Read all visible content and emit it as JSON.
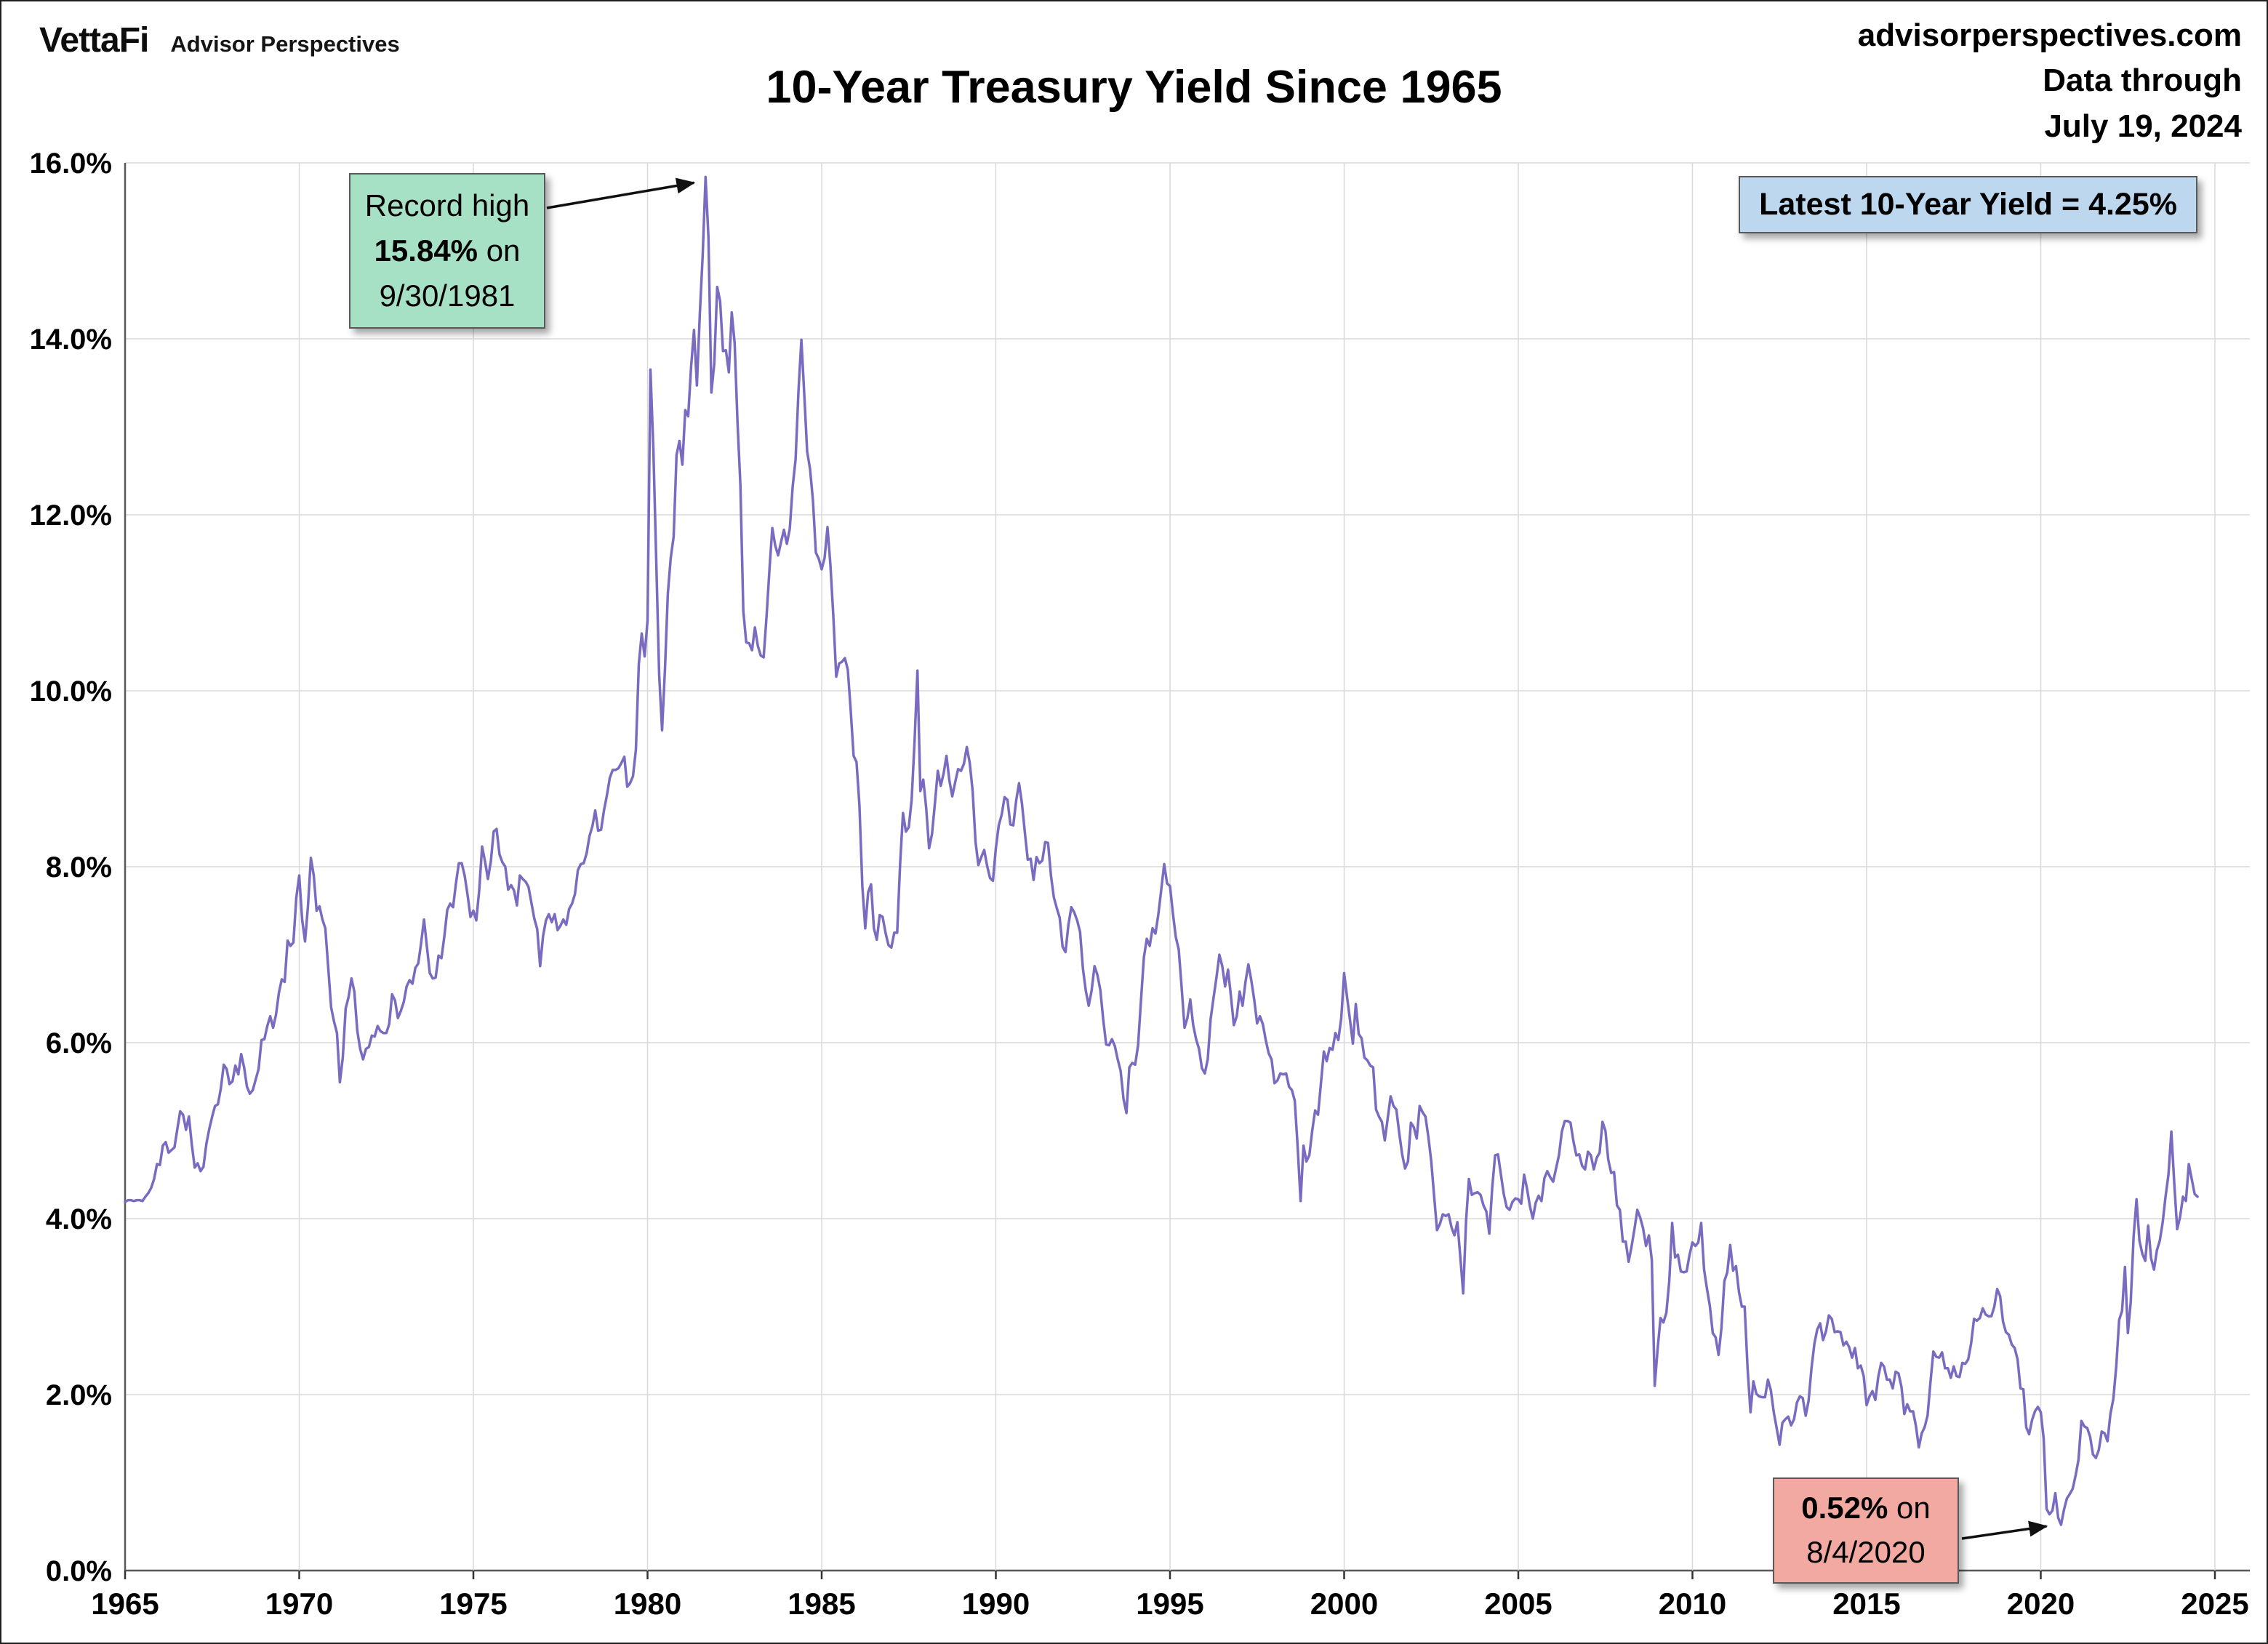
{
  "page": {
    "brand": {
      "logo_text": "VettaFi",
      "sub_brand": "Advisor Perspectives"
    },
    "header_right": {
      "line1": "advisorperspectives.com",
      "line2": "Data through",
      "line3": "July 19, 2024"
    },
    "title": "10-Year Treasury Yield Since 1965"
  },
  "annotations": {
    "record_high": {
      "line1": "Record high",
      "value": "15.84%",
      "suffix": " on",
      "date": "9/30/1981",
      "bg": "#a6e1c5",
      "anchor_year": 1981.667,
      "anchor_value": 15.84
    },
    "latest": {
      "text": "Latest 10-Year Yield = 4.25%",
      "bg": "#bdd7ee"
    },
    "low": {
      "value": "0.52%",
      "suffix": " on",
      "date": "8/4/2020",
      "bg": "#f1a9a2",
      "anchor_year": 2020.583,
      "anchor_value": 0.52
    }
  },
  "chart_data": {
    "type": "line",
    "title": "10-Year Treasury Yield Since 1965",
    "series_name": "10-Year Treasury Yield",
    "line_color": "#7a6bc1",
    "grid": true,
    "xlim": [
      1965,
      2025
    ],
    "ylim": [
      0,
      16
    ],
    "xticks": [
      1965,
      1970,
      1975,
      1980,
      1985,
      1990,
      1995,
      2000,
      2005,
      2010,
      2015,
      2020,
      2025
    ],
    "xtick_labels": [
      "1965",
      "1970",
      "1975",
      "1980",
      "1985",
      "1990",
      "1995",
      "2000",
      "2005",
      "2010",
      "2015",
      "2020",
      "2025"
    ],
    "yticks": [
      0,
      2,
      4,
      6,
      8,
      10,
      12,
      14,
      16
    ],
    "ytick_labels": [
      "0.0%",
      "2.0%",
      "4.0%",
      "6.0%",
      "8.0%",
      "10.0%",
      "12.0%",
      "14.0%",
      "16.0%"
    ],
    "x_start_year": 1965,
    "x_points_per_year": 12,
    "values": [
      4.19,
      4.21,
      4.21,
      4.2,
      4.21,
      4.21,
      4.2,
      4.25,
      4.29,
      4.35,
      4.45,
      4.62,
      4.61,
      4.83,
      4.87,
      4.75,
      4.78,
      4.81,
      5.02,
      5.22,
      5.18,
      5.01,
      5.16,
      4.84,
      4.58,
      4.63,
      4.54,
      4.59,
      4.85,
      5.02,
      5.16,
      5.28,
      5.3,
      5.48,
      5.75,
      5.7,
      5.53,
      5.56,
      5.74,
      5.64,
      5.87,
      5.72,
      5.5,
      5.42,
      5.46,
      5.58,
      5.7,
      6.03,
      6.04,
      6.19,
      6.3,
      6.17,
      6.32,
      6.57,
      6.72,
      6.69,
      7.16,
      7.1,
      7.14,
      7.65,
      7.9,
      7.4,
      7.15,
      7.55,
      8.1,
      7.9,
      7.5,
      7.55,
      7.4,
      7.3,
      6.85,
      6.4,
      6.24,
      6.11,
      5.55,
      5.83,
      6.39,
      6.52,
      6.73,
      6.58,
      6.14,
      5.93,
      5.81,
      5.93,
      5.95,
      6.08,
      6.07,
      6.19,
      6.13,
      6.11,
      6.11,
      6.21,
      6.55,
      6.48,
      6.28,
      6.36,
      6.46,
      6.64,
      6.71,
      6.67,
      6.85,
      6.9,
      7.13,
      7.4,
      7.09,
      6.79,
      6.73,
      6.74,
      6.99,
      6.96,
      7.21,
      7.51,
      7.58,
      7.54,
      7.81,
      8.04,
      8.04,
      7.9,
      7.68,
      7.43,
      7.5,
      7.39,
      7.73,
      8.23,
      8.06,
      7.86,
      8.06,
      8.4,
      8.43,
      8.14,
      8.05,
      8.0,
      7.74,
      7.79,
      7.73,
      7.56,
      7.9,
      7.86,
      7.83,
      7.77,
      7.59,
      7.41,
      7.29,
      6.87,
      7.21,
      7.39,
      7.46,
      7.37,
      7.46,
      7.28,
      7.33,
      7.4,
      7.34,
      7.52,
      7.58,
      7.69,
      7.96,
      8.03,
      8.04,
      8.15,
      8.35,
      8.46,
      8.64,
      8.41,
      8.42,
      8.64,
      8.81,
      9.01,
      9.1,
      9.1,
      9.12,
      9.18,
      9.25,
      8.91,
      8.95,
      9.03,
      9.33,
      10.3,
      10.65,
      10.39,
      10.8,
      13.65,
      12.75,
      11.47,
      10.18,
      9.55,
      10.25,
      11.1,
      11.51,
      11.75,
      12.68,
      12.84,
      12.57,
      13.19,
      13.12,
      13.68,
      14.1,
      13.47,
      14.28,
      14.94,
      15.84,
      15.15,
      13.39,
      13.72,
      14.59,
      14.43,
      13.86,
      13.87,
      13.62,
      14.3,
      13.95,
      13.06,
      12.34,
      10.91,
      10.55,
      10.54,
      10.46,
      10.72,
      10.51,
      10.4,
      10.38,
      10.85,
      11.38,
      11.85,
      11.65,
      11.54,
      11.69,
      11.83,
      11.67,
      11.84,
      12.32,
      12.63,
      13.41,
      13.99,
      13.36,
      12.72,
      12.52,
      12.16,
      11.57,
      11.5,
      11.38,
      11.51,
      11.86,
      11.43,
      10.85,
      10.16,
      10.31,
      10.33,
      10.37,
      10.24,
      9.78,
      9.26,
      9.19,
      8.7,
      7.78,
      7.3,
      7.71,
      7.8,
      7.3,
      7.17,
      7.45,
      7.43,
      7.25,
      7.11,
      7.08,
      7.25,
      7.25,
      8.02,
      8.61,
      8.4,
      8.45,
      8.76,
      9.42,
      10.23,
      8.86,
      8.99,
      8.67,
      8.21,
      8.37,
      8.72,
      9.09,
      8.92,
      9.06,
      9.26,
      8.98,
      8.8,
      8.96,
      9.11,
      9.09,
      9.17,
      9.36,
      9.18,
      8.86,
      8.28,
      8.02,
      8.11,
      8.19,
      8.01,
      7.87,
      7.84,
      8.21,
      8.47,
      8.59,
      8.79,
      8.76,
      8.48,
      8.47,
      8.75,
      8.95,
      8.72,
      8.39,
      8.08,
      8.09,
      7.85,
      8.11,
      8.04,
      8.07,
      8.28,
      8.27,
      7.9,
      7.65,
      7.53,
      7.42,
      7.09,
      7.03,
      7.34,
      7.54,
      7.48,
      7.39,
      7.26,
      6.84,
      6.59,
      6.42,
      6.59,
      6.87,
      6.77,
      6.6,
      6.26,
      5.98,
      5.97,
      6.04,
      5.96,
      5.81,
      5.68,
      5.36,
      5.2,
      5.72,
      5.77,
      5.75,
      5.97,
      6.48,
      6.97,
      7.18,
      7.1,
      7.3,
      7.24,
      7.46,
      7.74,
      8.03,
      7.81,
      7.78,
      7.47,
      7.2,
      7.06,
      6.63,
      6.17,
      6.28,
      6.49,
      6.2,
      6.04,
      5.93,
      5.71,
      5.65,
      5.81,
      6.27,
      6.51,
      6.74,
      7.0,
      6.87,
      6.64,
      6.83,
      6.53,
      6.2,
      6.3,
      6.58,
      6.42,
      6.69,
      6.89,
      6.71,
      6.49,
      6.22,
      6.3,
      6.21,
      6.03,
      5.88,
      5.81,
      5.54,
      5.57,
      5.65,
      5.64,
      5.65,
      5.5,
      5.46,
      5.34,
      4.81,
      4.2,
      4.83,
      4.65,
      4.72,
      5.0,
      5.23,
      5.18,
      5.54,
      5.9,
      5.79,
      5.94,
      5.92,
      6.11,
      6.03,
      6.28,
      6.79,
      6.52,
      6.26,
      5.99,
      6.44,
      6.1,
      6.05,
      5.83,
      5.8,
      5.74,
      5.72,
      5.24,
      5.16,
      5.1,
      4.89,
      5.14,
      5.39,
      5.28,
      5.24,
      4.97,
      4.73,
      4.57,
      4.65,
      5.09,
      5.04,
      4.91,
      5.28,
      5.21,
      5.16,
      4.93,
      4.65,
      4.26,
      3.87,
      3.94,
      4.05,
      4.03,
      4.05,
      3.9,
      3.81,
      3.96,
      3.57,
      3.15,
      3.98,
      4.45,
      4.27,
      4.29,
      4.3,
      4.27,
      4.15,
      4.08,
      3.83,
      4.35,
      4.72,
      4.73,
      4.5,
      4.28,
      4.13,
      4.1,
      4.19,
      4.23,
      4.22,
      4.17,
      4.5,
      4.34,
      4.14,
      4.0,
      4.18,
      4.26,
      4.2,
      4.46,
      4.54,
      4.47,
      4.42,
      4.57,
      4.72,
      4.99,
      5.11,
      5.11,
      5.09,
      4.88,
      4.72,
      4.73,
      4.6,
      4.56,
      4.76,
      4.72,
      4.56,
      4.69,
      4.75,
      5.1,
      5.0,
      4.67,
      4.52,
      4.53,
      4.15,
      4.1,
      3.74,
      3.74,
      3.51,
      3.68,
      3.88,
      4.1,
      4.01,
      3.89,
      3.69,
      3.81,
      3.53,
      2.1,
      2.52,
      2.87,
      2.82,
      2.93,
      3.29,
      3.95,
      3.56,
      3.59,
      3.4,
      3.39,
      3.4,
      3.59,
      3.73,
      3.69,
      3.73,
      3.95,
      3.42,
      3.2,
      3.01,
      2.7,
      2.65,
      2.45,
      2.76,
      3.29,
      3.39,
      3.7,
      3.41,
      3.46,
      3.17,
      3.0,
      3.0,
      2.3,
      1.8,
      2.15,
      2.01,
      1.98,
      1.97,
      1.97,
      2.17,
      2.05,
      1.8,
      1.62,
      1.43,
      1.68,
      1.72,
      1.75,
      1.65,
      1.72,
      1.91,
      1.98,
      1.96,
      1.76,
      1.93,
      2.3,
      2.58,
      2.74,
      2.81,
      2.62,
      2.72,
      2.9,
      2.86,
      2.71,
      2.72,
      2.71,
      2.56,
      2.6,
      2.54,
      2.42,
      2.53,
      2.3,
      2.33,
      2.21,
      1.88,
      1.98,
      2.04,
      1.94,
      2.2,
      2.36,
      2.32,
      2.17,
      2.17,
      2.07,
      2.26,
      2.24,
      2.09,
      1.78,
      1.89,
      1.81,
      1.81,
      1.64,
      1.4,
      1.56,
      1.63,
      1.76,
      2.14,
      2.49,
      2.43,
      2.42,
      2.48,
      2.3,
      2.3,
      2.19,
      2.32,
      2.21,
      2.2,
      2.36,
      2.35,
      2.4,
      2.58,
      2.86,
      2.84,
      2.87,
      2.98,
      2.91,
      2.89,
      2.89,
      3.0,
      3.2,
      3.12,
      2.83,
      2.71,
      2.68,
      2.57,
      2.53,
      2.4,
      2.07,
      2.06,
      1.63,
      1.55,
      1.71,
      1.81,
      1.86,
      1.8,
      1.5,
      0.7,
      0.64,
      0.68,
      0.88,
      0.6,
      0.52,
      0.69,
      0.82,
      0.87,
      0.93,
      1.08,
      1.26,
      1.7,
      1.64,
      1.62,
      1.52,
      1.32,
      1.28,
      1.37,
      1.58,
      1.56,
      1.47,
      1.78,
      1.95,
      2.32,
      2.85,
      2.95,
      3.45,
      2.7,
      3.05,
      3.8,
      4.22,
      3.75,
      3.6,
      3.52,
      3.92,
      3.55,
      3.42,
      3.64,
      3.75,
      3.96,
      4.25,
      4.5,
      4.99,
      4.4,
      3.88,
      4.02,
      4.25,
      4.2,
      4.62,
      4.45,
      4.28,
      4.25
    ]
  }
}
